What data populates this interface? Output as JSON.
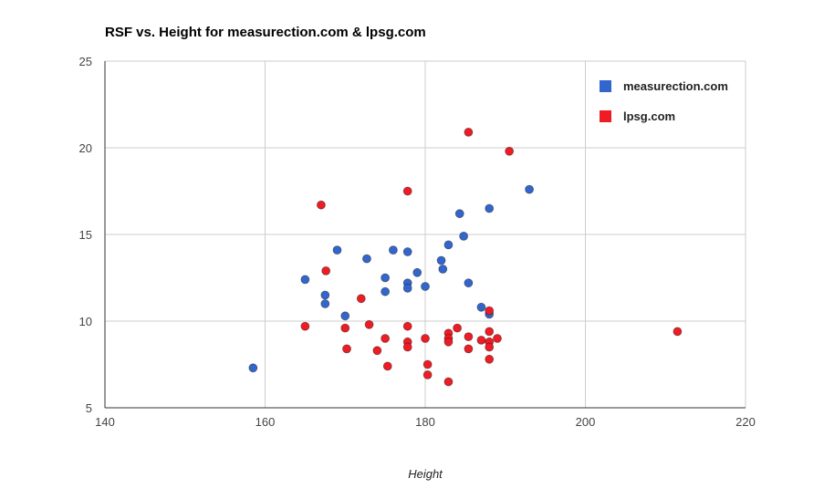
{
  "chart_data": {
    "type": "scatter",
    "title": "RSF vs. Height for measurection.com & lpsg.com",
    "xlabel": "Height",
    "ylabel": "",
    "xlim": [
      140,
      220
    ],
    "ylim": [
      5,
      25
    ],
    "x_ticks": [
      "140",
      "160",
      "180",
      "200",
      "220"
    ],
    "y_ticks": [
      "5",
      "10",
      "15",
      "20",
      "25"
    ],
    "grid": true,
    "legend_position": "top-right",
    "series": [
      {
        "name": "measurection.com",
        "color": "#3366cc",
        "points": [
          [
            158.5,
            7.3
          ],
          [
            165,
            12.4
          ],
          [
            167.5,
            11.5
          ],
          [
            167.5,
            11
          ],
          [
            169,
            14.1
          ],
          [
            170,
            10.3
          ],
          [
            172.7,
            13.6
          ],
          [
            175,
            12.5
          ],
          [
            175,
            11.7
          ],
          [
            176,
            14.1
          ],
          [
            177.8,
            14
          ],
          [
            177.8,
            12.2
          ],
          [
            177.8,
            11.9
          ],
          [
            179,
            12.8
          ],
          [
            180,
            12
          ],
          [
            182,
            13.5
          ],
          [
            182.2,
            13
          ],
          [
            182.9,
            14.4
          ],
          [
            184.3,
            16.2
          ],
          [
            184.8,
            14.9
          ],
          [
            185.4,
            12.2
          ],
          [
            187,
            10.8
          ],
          [
            188,
            16.5
          ],
          [
            188,
            10.4
          ],
          [
            193,
            17.6
          ]
        ]
      },
      {
        "name": "lpsg.com",
        "color": "#ee1c25",
        "points": [
          [
            165,
            9.7
          ],
          [
            167,
            16.7
          ],
          [
            167.6,
            12.9
          ],
          [
            170,
            9.6
          ],
          [
            170.2,
            8.4
          ],
          [
            172,
            11.3
          ],
          [
            173,
            9.8
          ],
          [
            174,
            8.3
          ],
          [
            175,
            9
          ],
          [
            175.3,
            7.4
          ],
          [
            177.8,
            17.5
          ],
          [
            177.8,
            9.7
          ],
          [
            177.8,
            8.8
          ],
          [
            177.8,
            8.5
          ],
          [
            180,
            9
          ],
          [
            180.3,
            7.5
          ],
          [
            180.3,
            6.9
          ],
          [
            182.9,
            9.3
          ],
          [
            182.9,
            9
          ],
          [
            182.9,
            8.8
          ],
          [
            182.9,
            6.5
          ],
          [
            184,
            9.6
          ],
          [
            185.4,
            20.9
          ],
          [
            185.4,
            9.1
          ],
          [
            185.4,
            8.4
          ],
          [
            187,
            8.9
          ],
          [
            188,
            10.6
          ],
          [
            188,
            9.4
          ],
          [
            188,
            8.8
          ],
          [
            188,
            8.5
          ],
          [
            188,
            7.8
          ],
          [
            189,
            9
          ],
          [
            190.5,
            19.8
          ],
          [
            211.5,
            9.4
          ]
        ]
      }
    ]
  }
}
